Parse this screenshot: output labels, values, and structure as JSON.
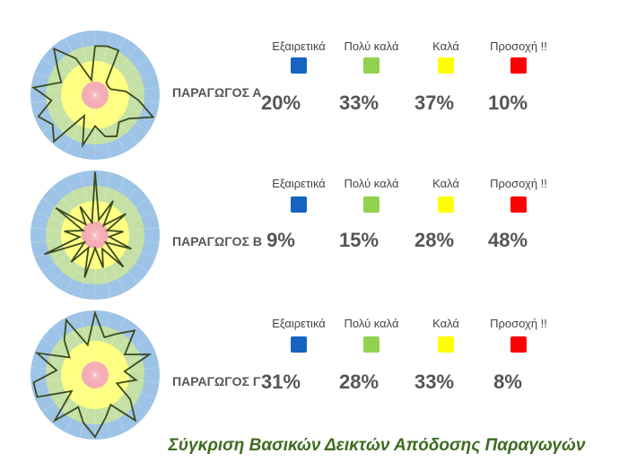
{
  "title": "Σύγκριση Βασικών Δεικτών Απόδοσης Παραγωγών",
  "legend": [
    {
      "label": "Εξαιρετικά",
      "color": "#1565c0"
    },
    {
      "label": "Πολύ καλά",
      "color": "#92d050"
    },
    {
      "label": "Καλά",
      "color": "#ffff00"
    },
    {
      "label": "Προσοχή !!",
      "color": "#ff0000"
    }
  ],
  "chart_data": [
    {
      "type": "radar",
      "name": "ΠΑΡΑΓΩΓΟΣ Α",
      "percentages": [
        "20%",
        "33%",
        "37%",
        "10%"
      ],
      "rmax": 5,
      "values": [
        3.8,
        3.9,
        3.9,
        1.3,
        1.2,
        1.3,
        2.4,
        3.4,
        4.8,
        3.2,
        2.8,
        3.6,
        3.3,
        2.4,
        4.0,
        1.8,
        4.8,
        4.0,
        4.7,
        3.4,
        4.8,
        2.8,
        3.5,
        4.8,
        3.2,
        1.2
      ]
    },
    {
      "type": "radar",
      "name": "ΠΑΡΑΓΩΓΟΣ Β",
      "percentages": [
        "9%",
        "15%",
        "28%",
        "48%"
      ],
      "rmax": 5,
      "values": [
        4.9,
        1.2,
        3.0,
        1.0,
        2.9,
        1.0,
        2.2,
        1.1,
        3.0,
        1.0,
        3.3,
        1.2,
        2.6,
        1.0,
        3.4,
        1.1,
        2.8,
        1.0,
        4.2,
        1.2,
        2.4,
        1.0,
        3.7,
        1.1,
        2.5,
        1.0
      ]
    },
    {
      "type": "radar",
      "name": "ΠΑΡΑΓΩΓΟΣ Γ",
      "percentages": [
        "31%",
        "28%",
        "33%",
        "8%"
      ],
      "rmax": 5,
      "values": [
        4.8,
        3.0,
        3.6,
        4.6,
        2.8,
        4.5,
        2.3,
        3.2,
        1.8,
        3.3,
        4.7,
        2.6,
        3.4,
        4.8,
        3.8,
        2.8,
        4.7,
        2.2,
        4.8,
        4.8,
        3.0,
        4.8,
        2.4,
        3.6,
        4.8,
        2.4
      ]
    }
  ]
}
